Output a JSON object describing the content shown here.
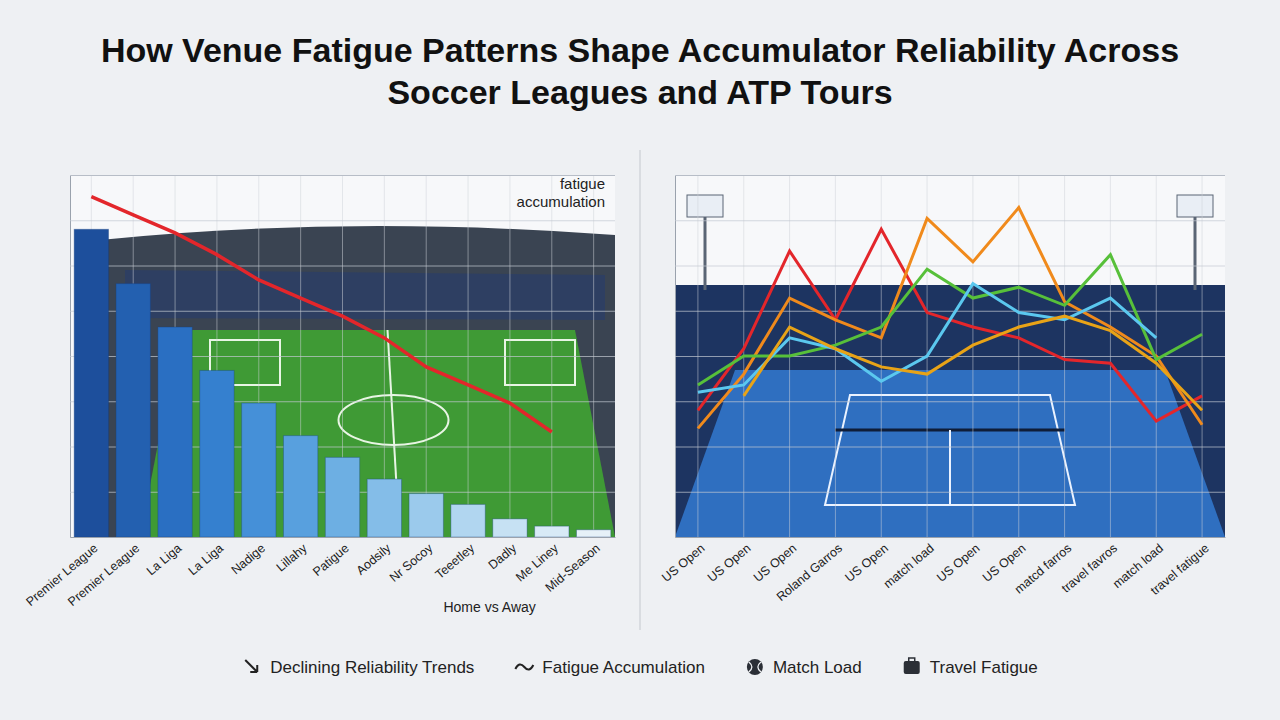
{
  "title": "How Venue Fatigue Patterns Shape Accumulator Reliability Across Soccer Leagues and ATP Tours",
  "chart_data": [
    {
      "type": "bar",
      "annotation": "fatigue accumulation",
      "x_label": "Home vs Away",
      "categories": [
        "Premier League",
        "Premier League",
        "La Liga",
        "La Liga",
        "Nadige",
        "Lillahy",
        "Patigue",
        "Aodsily",
        "Nr Socoy",
        "Teeetley",
        "Dadly",
        "Me Liney",
        "Mid-Season"
      ],
      "series": [
        {
          "type": "bar",
          "colors": [
            "#1d4f9c",
            "#2360b0",
            "#2a6fc2",
            "#3580cf",
            "#4590d8",
            "#58a0de",
            "#6dafe3",
            "#84bde8",
            "#9bcaec",
            "#b1d6f0",
            "#c6e1f3",
            "#d8eaf6",
            "#e6f1f8"
          ],
          "values": [
            85,
            70,
            58,
            46,
            37,
            28,
            22,
            16,
            12,
            9,
            5,
            3,
            2
          ]
        },
        {
          "type": "line",
          "color": "#e3262b",
          "values": [
            94,
            89,
            84,
            78,
            71,
            66,
            61,
            55,
            47,
            42,
            37,
            29,
            null
          ]
        }
      ],
      "ylim": [
        0,
        100
      ],
      "yticks": [
        0,
        12.5,
        25,
        37.5,
        50,
        62.5,
        75,
        87.5,
        100
      ],
      "grid": true,
      "tick_labels": "x"
    },
    {
      "type": "line",
      "categories": [
        "US Open",
        "US Open",
        "US Open",
        "Roland Garros",
        "US Open",
        "match load",
        "US Open",
        "US Open",
        "matcd farros",
        "travel favros",
        "match load",
        "travel fatigue"
      ],
      "series": [
        {
          "color": "#e3262b",
          "values": [
            35,
            52,
            79,
            60,
            85,
            62,
            58,
            55,
            49,
            48,
            32,
            39
          ]
        },
        {
          "color": "#f08a1c",
          "values": [
            30,
            45,
            66,
            60,
            55,
            88,
            76,
            91,
            65,
            58,
            50,
            31
          ]
        },
        {
          "color": "#57c03a",
          "values": [
            42,
            50,
            50,
            53,
            58,
            74,
            66,
            69,
            64,
            78,
            49,
            56
          ]
        },
        {
          "color": "#5bc8ef",
          "values": [
            40,
            42,
            55,
            52,
            43,
            50,
            70,
            62,
            60,
            66,
            55,
            null
          ]
        },
        {
          "color": "#e8a317",
          "values": [
            null,
            39,
            58,
            52,
            47,
            45,
            53,
            58,
            61,
            57,
            48,
            35
          ]
        }
      ],
      "ylim": [
        0,
        100
      ],
      "yticks": [
        0,
        12.5,
        25,
        37.5,
        50,
        62.5,
        75,
        87.5,
        100
      ],
      "grid": true,
      "tick_labels": "x"
    }
  ],
  "legend_entries": [
    "Declining Reliability Trends",
    "Fatigue Accumulation",
    "Match Load",
    "Travel Fatigue"
  ]
}
